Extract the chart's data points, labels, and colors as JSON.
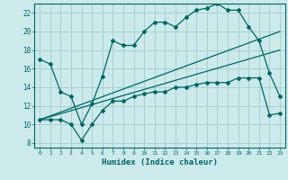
{
  "xlabel": "Humidex (Indice chaleur)",
  "bg_color": "#cceaea",
  "grid_color": "#aacfcf",
  "line_color": "#006666",
  "xlim": [
    -0.5,
    23.5
  ],
  "ylim": [
    7.5,
    23.0
  ],
  "yticks": [
    8,
    10,
    12,
    14,
    16,
    18,
    20,
    22
  ],
  "xtick_labels": [
    "0",
    "1",
    "2",
    "3",
    "4",
    "5",
    "6",
    "7",
    "8",
    "9",
    "10",
    "11",
    "12",
    "13",
    "14",
    "15",
    "16",
    "17",
    "18",
    "19",
    "20",
    "21",
    "22",
    "23"
  ],
  "line1_x": [
    0,
    1,
    2,
    3,
    4,
    5,
    6,
    7,
    8,
    9,
    10,
    11,
    12,
    13,
    14,
    15,
    16,
    17,
    18,
    19,
    20,
    21,
    22,
    23
  ],
  "line1_y": [
    17.0,
    16.5,
    13.5,
    13.0,
    10.0,
    12.2,
    15.2,
    19.0,
    18.5,
    18.5,
    20.0,
    21.0,
    21.0,
    20.5,
    21.5,
    22.3,
    22.5,
    23.0,
    22.3,
    22.3,
    20.5,
    19.0,
    15.5,
    13.0
  ],
  "line2_x": [
    0,
    1,
    2,
    3,
    4,
    5,
    6,
    7,
    8,
    9,
    10,
    11,
    12,
    13,
    14,
    15,
    16,
    17,
    18,
    19,
    20,
    21,
    22,
    23
  ],
  "line2_y": [
    10.5,
    10.5,
    10.5,
    10.0,
    8.3,
    10.0,
    11.5,
    12.5,
    12.5,
    13.0,
    13.3,
    13.5,
    13.5,
    14.0,
    14.0,
    14.3,
    14.5,
    14.5,
    14.5,
    15.0,
    15.0,
    15.0,
    11.0,
    11.2
  ],
  "line3_x": [
    0,
    23
  ],
  "line3_y": [
    10.5,
    20.0
  ],
  "line4_x": [
    0,
    23
  ],
  "line4_y": [
    10.5,
    18.0
  ],
  "marker": "D",
  "markersize": 2.0
}
